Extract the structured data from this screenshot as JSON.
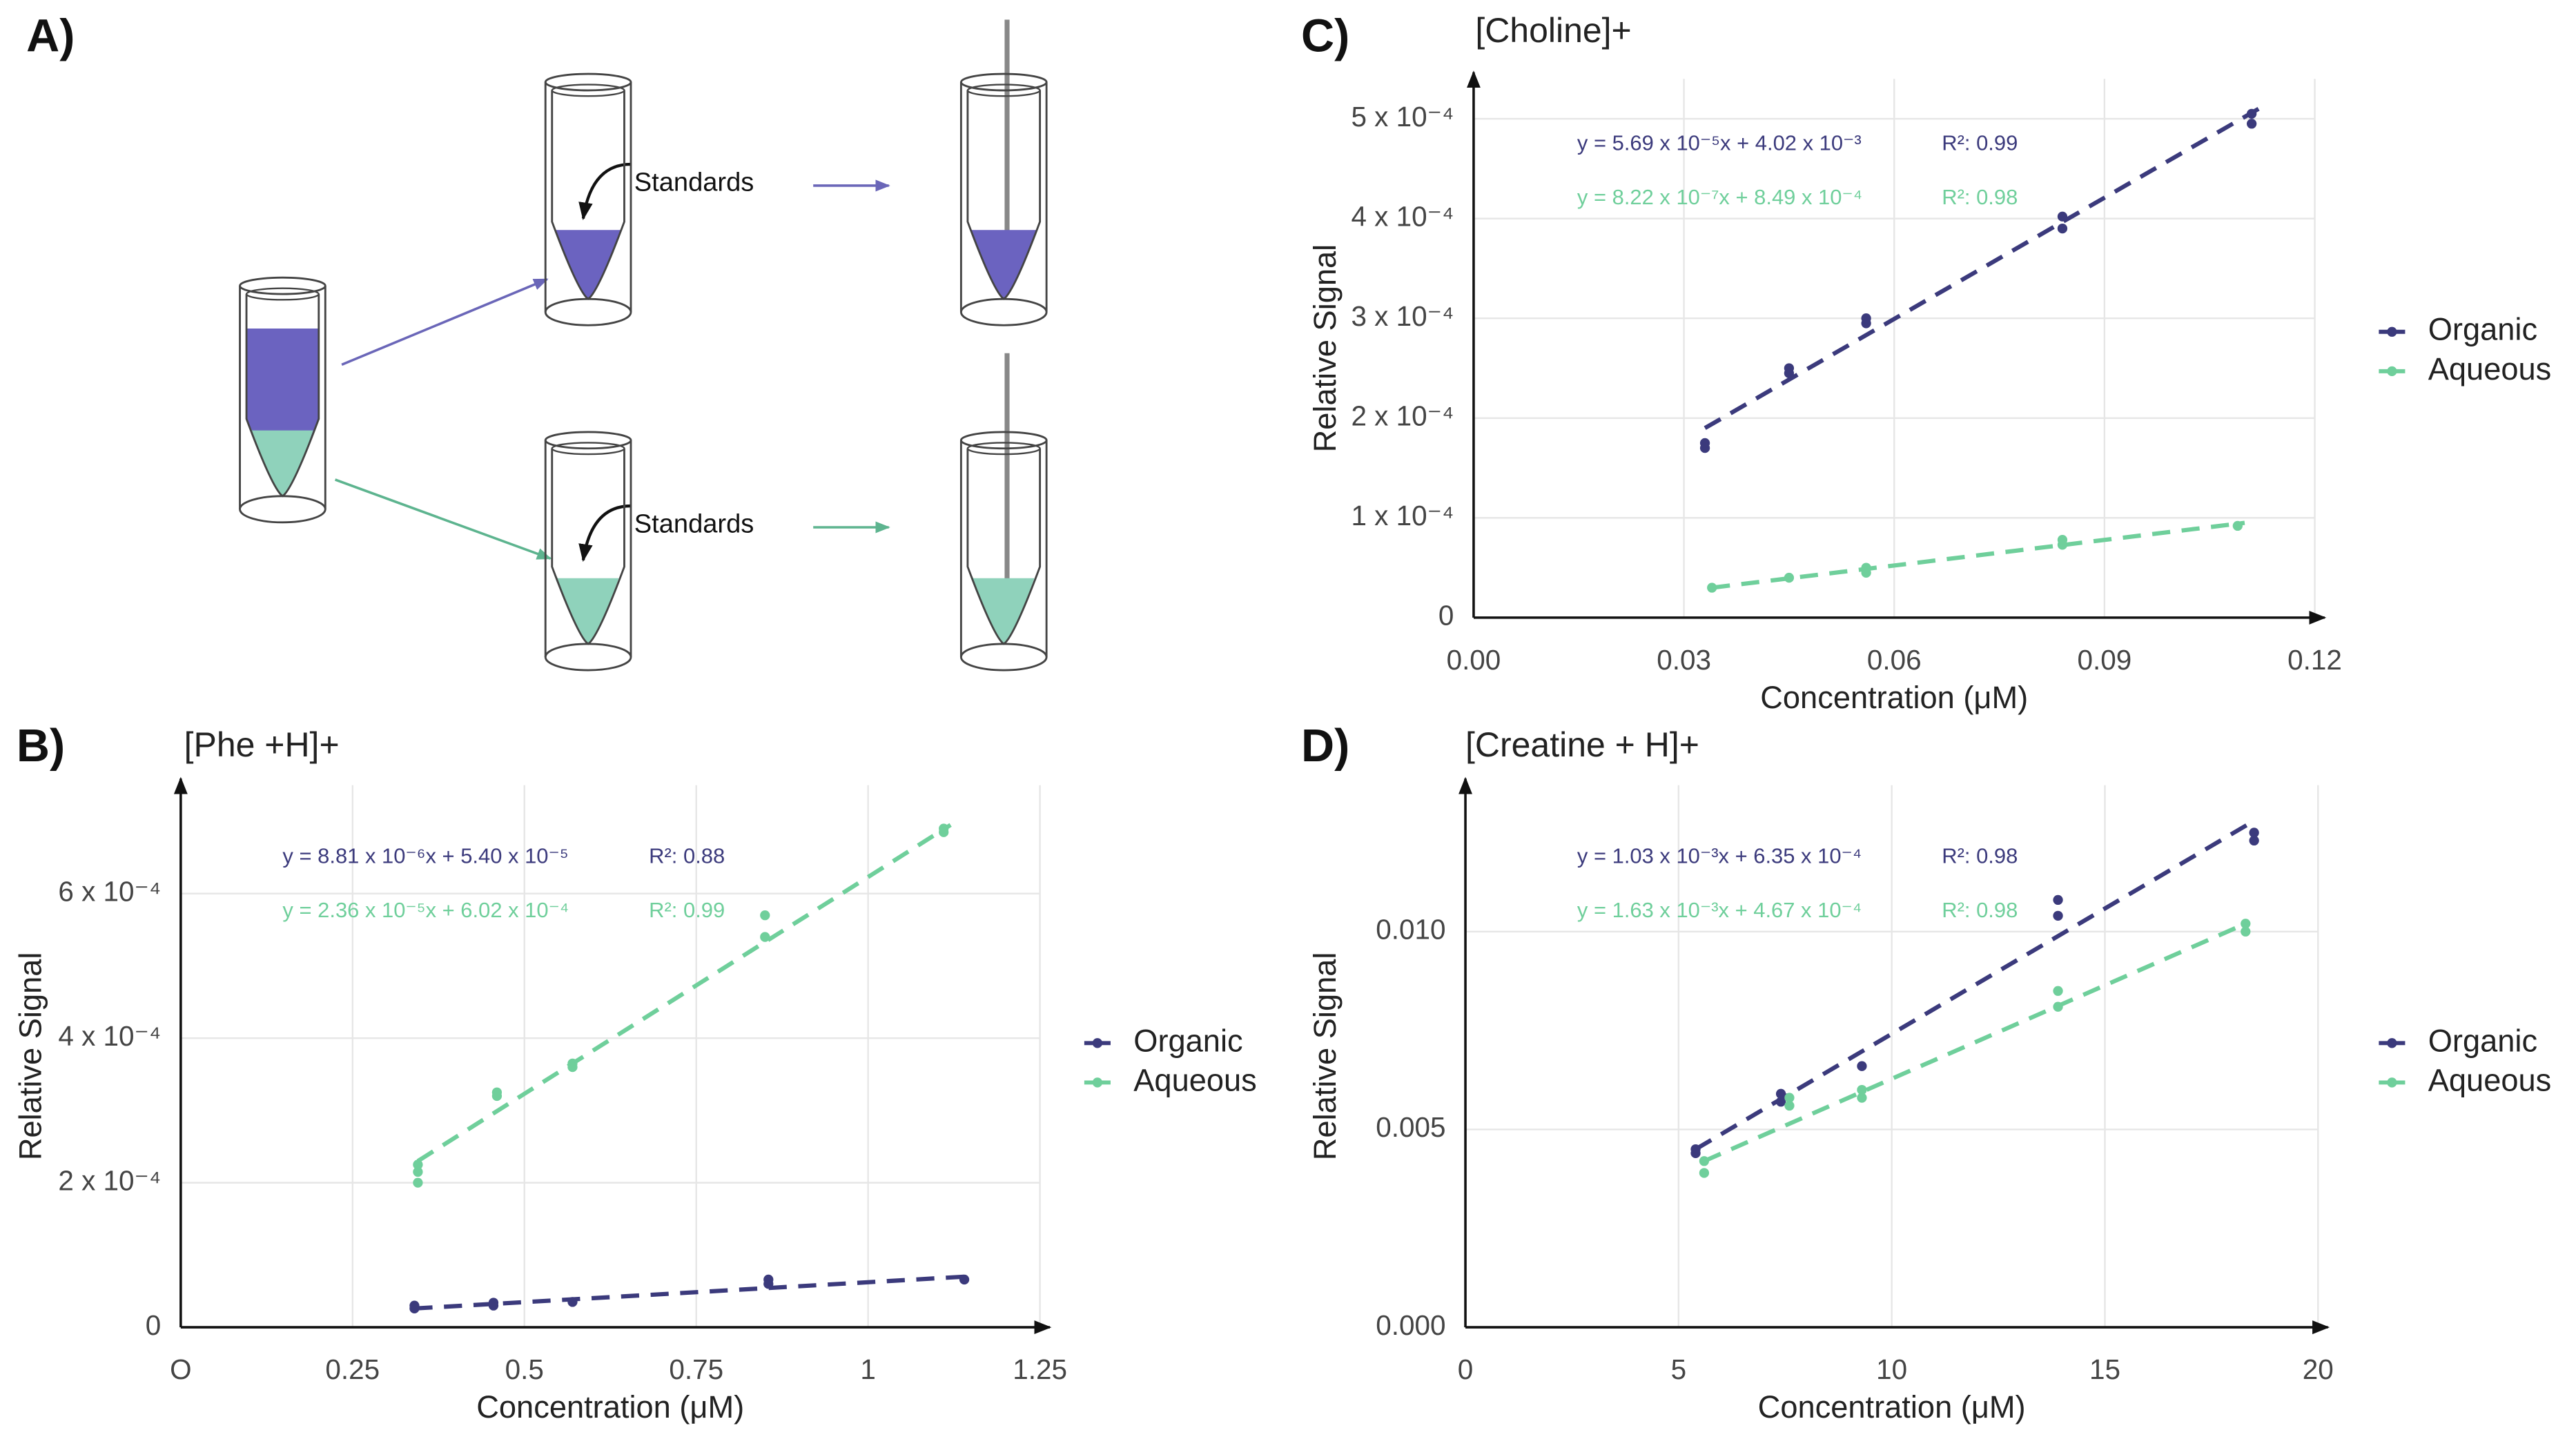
{
  "panel_labels": [
    "A)",
    "B)",
    "C)",
    "D)"
  ],
  "diagram": {
    "labels": [
      "Standards",
      "Standards"
    ]
  },
  "chart_data": [
    {
      "type": "scatter",
      "title": "[Phe +H]+",
      "xlabel": "Concentration (μM)",
      "ylabel": "Relative Signal",
      "xlim": [
        0,
        1.25
      ],
      "ylim": [
        0,
        0.00075
      ],
      "xticks": [
        {
          "value": 0,
          "label": "O"
        },
        0.25,
        0.5,
        0.75,
        1,
        1.25
      ],
      "yticks": [
        0,
        {
          "value": 0.0002,
          "label": "2 x 10⁻⁴"
        },
        {
          "value": 0.0004,
          "label": "4 x 10⁻⁴"
        },
        {
          "value": 0.0006,
          "label": "6 x 10⁻⁴"
        }
      ],
      "grid": true,
      "legend": "right",
      "series": [
        {
          "name": "Organic",
          "color": "#3b3a7c",
          "x": [
            0.34,
            0.34,
            0.455,
            0.455,
            0.57,
            0.855,
            0.855,
            1.14
          ],
          "y": [
            3e-05,
            2.6e-05,
            3.4e-05,
            3e-05,
            3.5e-05,
            6.6e-05,
            6e-05,
            6.6e-05
          ],
          "fit_x": [
            0.34,
            1.14
          ],
          "fit_y": [
            2.6e-05,
            7e-05
          ],
          "equation": "y = 8.81 x 10⁻⁶x + 5.40 x 10⁻⁵",
          "r2_label": "R²: 0.88"
        },
        {
          "name": "Aqueous",
          "color": "#6fcf9b",
          "x": [
            0.345,
            0.345,
            0.345,
            0.46,
            0.46,
            0.57,
            0.57,
            0.85,
            0.85,
            1.11,
            1.11
          ],
          "y": [
            0.0002,
            0.000215,
            0.000225,
            0.000325,
            0.00032,
            0.000365,
            0.00036,
            0.00057,
            0.00054,
            0.000685,
            0.00069
          ],
          "fit_x": [
            0.345,
            1.12
          ],
          "fit_y": [
            0.00023,
            0.000695
          ],
          "equation": "y = 2.36 x 10⁻⁵x + 6.02 x 10⁻⁴",
          "r2_label": "R²: 0.99"
        }
      ]
    },
    {
      "type": "scatter",
      "title": "[Choline]+",
      "xlabel": "Concentration (μM)",
      "ylabel": "Relative Signal",
      "xlim": [
        0,
        0.12
      ],
      "ylim": [
        0,
        0.00054
      ],
      "xticks": [
        {
          "value": 0,
          "label": "0.00"
        },
        0.03,
        0.06,
        0.09,
        0.12
      ],
      "yticks": [
        0,
        {
          "value": 0.0001,
          "label": "1 x 10⁻⁴"
        },
        {
          "value": 0.0002,
          "label": "2 x 10⁻⁴"
        },
        {
          "value": 0.0003,
          "label": "3 x 10⁻⁴"
        },
        {
          "value": 0.0004,
          "label": "4 x 10⁻⁴"
        },
        {
          "value": 0.0005,
          "label": "5 x 10⁻⁴"
        }
      ],
      "grid": true,
      "legend": "right",
      "series": [
        {
          "name": "Organic",
          "color": "#3b3a7c",
          "x": [
            0.033,
            0.033,
            0.045,
            0.045,
            0.056,
            0.056,
            0.084,
            0.084,
            0.111,
            0.111
          ],
          "y": [
            0.00017,
            0.000175,
            0.000245,
            0.00025,
            0.000295,
            0.0003,
            0.00039,
            0.000402,
            0.000495,
            0.000505
          ],
          "fit_x": [
            0.033,
            0.112
          ],
          "fit_y": [
            0.00019,
            0.00051
          ],
          "equation": "y = 5.69 x 10⁻⁵x + 4.02 x 10⁻³",
          "r2_label": "R²: 0.99"
        },
        {
          "name": "Aqueous",
          "color": "#6fcf9b",
          "x": [
            0.034,
            0.045,
            0.056,
            0.056,
            0.084,
            0.084,
            0.109
          ],
          "y": [
            3e-05,
            4e-05,
            4.5e-05,
            5e-05,
            7.3e-05,
            7.8e-05,
            9.2e-05
          ],
          "fit_x": [
            0.034,
            0.11
          ],
          "fit_y": [
            3e-05,
            9.5e-05
          ],
          "equation": "y = 8.22 x 10⁻⁷x + 8.49 x 10⁻⁴",
          "r2_label": "R²: 0.98"
        }
      ]
    },
    {
      "type": "scatter",
      "title": "[Creatine + H]+",
      "xlabel": "Concentration (μM)",
      "ylabel": "Relative Signal",
      "xlim": [
        0,
        20
      ],
      "ylim": [
        0,
        0.0137
      ],
      "xticks": [
        0,
        5,
        10,
        15,
        20
      ],
      "yticks": [
        {
          "value": 0,
          "label": "0.000"
        },
        0.005,
        {
          "value": 0.01,
          "label": "0.010"
        }
      ],
      "grid": true,
      "legend": "right",
      "series": [
        {
          "name": "Organic",
          "color": "#3b3a7c",
          "x": [
            5.4,
            5.4,
            7.4,
            7.4,
            9.3,
            13.9,
            13.9,
            18.5,
            18.5
          ],
          "y": [
            0.0044,
            0.0045,
            0.0057,
            0.0059,
            0.0066,
            0.0104,
            0.0108,
            0.0123,
            0.0125
          ],
          "fit_x": [
            5.4,
            18.5
          ],
          "fit_y": [
            0.0045,
            0.0128
          ],
          "equation": "y = 1.03 x 10⁻³x + 6.35 x 10⁻⁴",
          "r2_label": "R²: 0.98"
        },
        {
          "name": "Aqueous",
          "color": "#6fcf9b",
          "x": [
            5.6,
            5.6,
            7.6,
            7.6,
            9.3,
            9.3,
            13.9,
            13.9,
            18.3,
            18.3
          ],
          "y": [
            0.0039,
            0.0042,
            0.0056,
            0.0058,
            0.0058,
            0.006,
            0.0081,
            0.0085,
            0.01,
            0.0102
          ],
          "fit_x": [
            5.6,
            18.3
          ],
          "fit_y": [
            0.0042,
            0.0102
          ],
          "equation": "y = 1.63 x 10⁻³x + 4.67 x 10⁻⁴",
          "r2_label": "R²: 0.98"
        }
      ]
    }
  ]
}
